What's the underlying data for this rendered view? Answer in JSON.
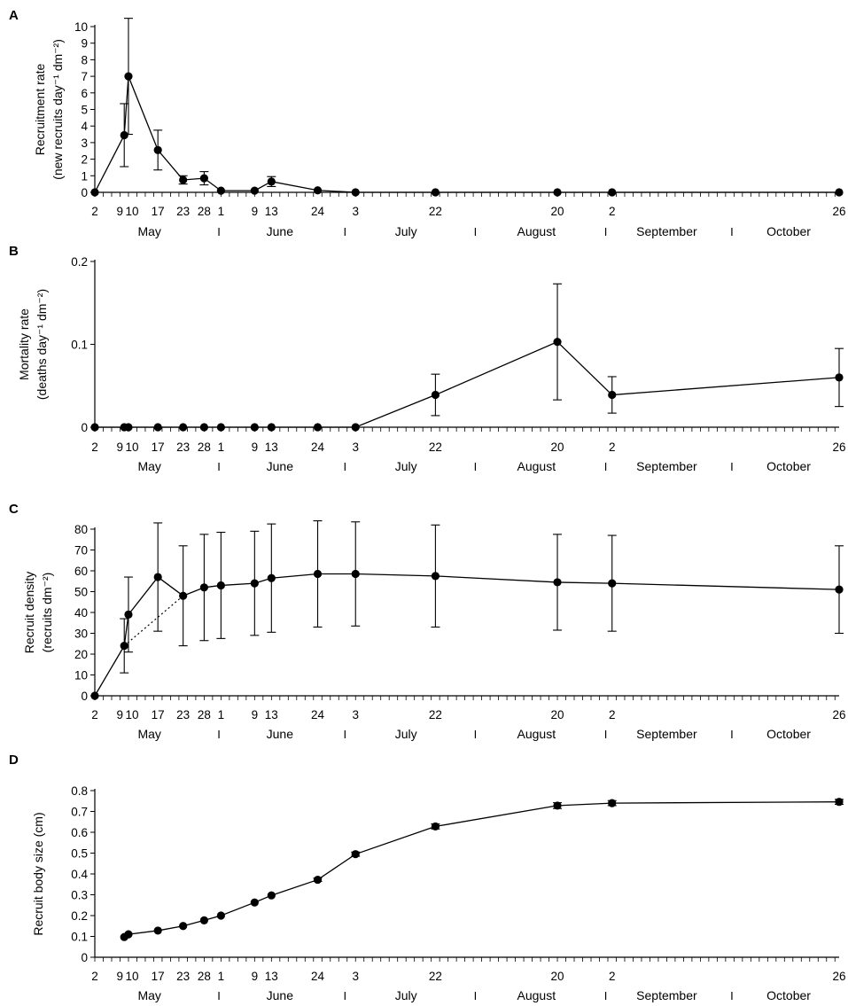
{
  "date_labels": [
    {
      "day": 0,
      "text": "2"
    },
    {
      "day": 7,
      "text": "9"
    },
    {
      "day": 8,
      "text": "10"
    },
    {
      "day": 15,
      "text": "17"
    },
    {
      "day": 21,
      "text": "23"
    },
    {
      "day": 26,
      "text": "28"
    },
    {
      "day": 30,
      "text": "1"
    },
    {
      "day": 38,
      "text": "9"
    },
    {
      "day": 42,
      "text": "13"
    },
    {
      "day": 53,
      "text": "24"
    },
    {
      "day": 62,
      "text": "3"
    },
    {
      "day": 81,
      "text": "22"
    },
    {
      "day": 110,
      "text": "20"
    },
    {
      "day": 123,
      "text": "2"
    },
    {
      "day": 177,
      "text": "26"
    }
  ],
  "month_labels": [
    {
      "center_day": 13,
      "text": "May"
    },
    {
      "center_day": 44,
      "text": "June"
    },
    {
      "center_day": 74,
      "text": "July"
    },
    {
      "center_day": 105,
      "text": "August"
    },
    {
      "center_day": 136,
      "text": "September"
    },
    {
      "center_day": 165,
      "text": "October"
    }
  ],
  "month_separators": [
    {
      "day": 29.5,
      "text": "I"
    },
    {
      "day": 59.5,
      "text": "I"
    },
    {
      "day": 90.5,
      "text": "I"
    },
    {
      "day": 121.5,
      "text": "I"
    },
    {
      "day": 151.5,
      "text": "I"
    }
  ],
  "chart_data": [
    {
      "type": "line",
      "panel": "A",
      "ylabel_line1": "Recruitment rate",
      "ylabel_line2": "(new recruits day⁻¹ dm⁻²)",
      "ylim": [
        0,
        10
      ],
      "yticks": [
        0,
        1,
        2,
        3,
        4,
        5,
        6,
        7,
        8,
        9,
        10
      ],
      "ytick_labels": [
        "0",
        "1",
        "2",
        "3",
        "4",
        "5",
        "6",
        "7",
        "8",
        "9",
        "10"
      ],
      "series": [
        {
          "name": "Recruitment rate",
          "x": [
            0,
            7,
            8,
            15,
            21,
            26,
            30,
            38,
            42,
            53,
            62,
            81,
            110,
            123,
            177
          ],
          "y": [
            0,
            3.45,
            7.0,
            2.55,
            0.75,
            0.85,
            0.1,
            0.1,
            0.65,
            0.12,
            0,
            0,
            0,
            0,
            0
          ],
          "err": [
            0,
            1.9,
            3.5,
            1.2,
            0.25,
            0.4,
            0,
            0,
            0.3,
            0,
            0,
            0,
            0,
            0,
            0
          ]
        }
      ]
    },
    {
      "type": "line",
      "panel": "B",
      "ylabel_line1": "Mortality rate",
      "ylabel_line2": "(deaths day⁻¹ dm⁻²)",
      "ylim": [
        0,
        0.2
      ],
      "yticks": [
        0,
        0.1,
        0.2
      ],
      "ytick_labels": [
        "0",
        "0.1",
        "0.2"
      ],
      "series": [
        {
          "name": "Mortality rate",
          "x": [
            0,
            7,
            8,
            15,
            21,
            26,
            30,
            38,
            42,
            53,
            62,
            81,
            110,
            123,
            177
          ],
          "y": [
            0,
            0,
            0,
            0,
            0,
            0,
            0,
            0,
            0,
            0,
            0,
            0.039,
            0.103,
            0.039,
            0.06
          ],
          "err": [
            0,
            0,
            0,
            0,
            0,
            0,
            0,
            0,
            0,
            0,
            0,
            0.025,
            0.07,
            0.022,
            0.035
          ]
        }
      ]
    },
    {
      "type": "line",
      "panel": "C",
      "ylabel_line1": "Recruit  density",
      "ylabel_line2": "(recruits dm⁻²)",
      "ylim": [
        0,
        80
      ],
      "yticks": [
        0,
        10,
        20,
        30,
        40,
        50,
        60,
        70,
        80
      ],
      "ytick_labels": [
        "0",
        "10",
        "20",
        "30",
        "40",
        "50",
        "60",
        "70",
        "80"
      ],
      "series": [
        {
          "name": "Recruit density",
          "x": [
            0,
            7,
            8,
            15,
            21,
            26,
            30,
            38,
            42,
            53,
            62,
            81,
            110,
            123,
            177
          ],
          "y": [
            0,
            24,
            39,
            57,
            48,
            52,
            53,
            54,
            56.5,
            58.5,
            58.5,
            57.5,
            54.5,
            54,
            51
          ],
          "err": [
            0,
            13,
            18,
            26,
            24,
            25.5,
            25.5,
            25,
            26,
            25.5,
            25,
            24.5,
            23,
            23,
            21
          ]
        }
      ],
      "dotted_segment": {
        "x": [
          7,
          21
        ],
        "y": [
          24,
          48
        ]
      }
    },
    {
      "type": "line",
      "panel": "D",
      "ylabel_line1": "Recruit  body  size  (cm)",
      "ylabel_line2": "",
      "ylim": [
        0,
        0.8
      ],
      "yticks": [
        0,
        0.1,
        0.2,
        0.3,
        0.4,
        0.5,
        0.6,
        0.7,
        0.8
      ],
      "ytick_labels": [
        "0",
        "0.1",
        "0.2",
        "0.3",
        "0.4",
        "0.5",
        "0.6",
        "0.7",
        "0.8"
      ],
      "series": [
        {
          "name": "Recruit body size",
          "x": [
            7,
            8,
            15,
            21,
            26,
            30,
            38,
            42,
            53,
            62,
            81,
            110,
            123,
            177
          ],
          "y": [
            0.097,
            0.11,
            0.128,
            0.15,
            0.177,
            0.2,
            0.263,
            0.297,
            0.372,
            0.495,
            0.628,
            0.728,
            0.74,
            0.746
          ],
          "err": [
            0,
            0,
            0,
            0,
            0,
            0,
            0,
            0,
            0.008,
            0.01,
            0.012,
            0.014,
            0.012,
            0.012
          ]
        }
      ]
    }
  ]
}
